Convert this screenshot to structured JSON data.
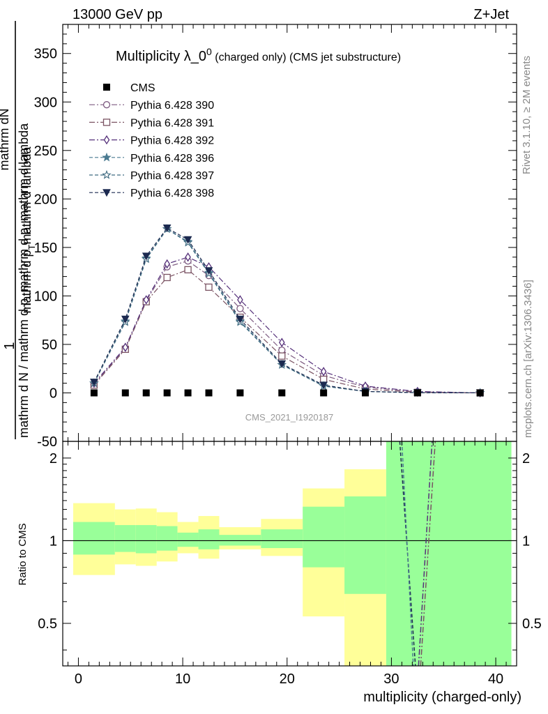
{
  "header": {
    "left": "13000 GeV pp",
    "right": "Z+Jet"
  },
  "side_labels": {
    "rivet": "Rivet 3.1.10, ≥ 2M events",
    "mcplots": "mcplots.cern.ch [arXiv:1306.3436]"
  },
  "watermark": "CMS_2021_I1920187",
  "title": {
    "main": "Multiplicity λ_0",
    "sup": "0",
    "rest": " (charged only) (CMS jet substructure)"
  },
  "ylabel": {
    "one": "1",
    "numerator": "mathrm dN",
    "denominator_a": "mathrm d p",
    "denominator_sub": "T",
    "denominator_b": "mathrm d lambda",
    "frac_main": "mathrm d N / mathrm d p_mathrm d p_mathrm d lambda"
  },
  "ratio_ylabel": "Ratio to CMS",
  "xlabel": "multiplicity (charged-only)",
  "chart_data": {
    "type": "line",
    "xlim": [
      -1.5,
      42
    ],
    "ylim": [
      -50,
      380
    ],
    "ratio_ylim": [
      0.35,
      2.3
    ],
    "x_ticks": [
      0,
      10,
      20,
      30,
      40
    ],
    "y_ticks": [
      -50,
      0,
      50,
      100,
      150,
      200,
      250,
      300,
      350
    ],
    "ratio_ticks": [
      0.5,
      1,
      2
    ],
    "x": [
      1.5,
      4.5,
      6.5,
      8.5,
      10.5,
      12.5,
      15.5,
      19.5,
      23.5,
      27.5,
      32.5,
      38.5
    ],
    "data": {
      "name": "CMS",
      "values": [
        0,
        0,
        0,
        0,
        0,
        0,
        0,
        0,
        0,
        0,
        0,
        0
      ]
    },
    "series": [
      {
        "name": "Pythia 6.428 390",
        "color": "#7d5a80",
        "marker": "circle-open",
        "dash": "8,3,2,3",
        "values": [
          9,
          46,
          95,
          130,
          136,
          121,
          87,
          44,
          18,
          6,
          1,
          0
        ]
      },
      {
        "name": "Pythia 6.428 391",
        "color": "#7a5262",
        "marker": "square-open",
        "dash": "8,3,2,3",
        "values": [
          8,
          45,
          94,
          119,
          127,
          109,
          78,
          38,
          14,
          4,
          0.5,
          0
        ]
      },
      {
        "name": "Pythia 6.428 392",
        "color": "#55307a",
        "marker": "diamond-open",
        "dash": "8,3,2,3",
        "values": [
          10,
          47,
          96,
          133,
          140,
          130,
          96,
          52,
          22,
          7,
          1.5,
          0
        ]
      },
      {
        "name": "Pythia 6.428 396",
        "color": "#4a7a90",
        "marker": "star-filled",
        "dash": "5,3",
        "values": [
          10,
          74,
          139,
          169,
          156,
          124,
          74,
          29,
          7,
          1.5,
          0.2,
          0
        ]
      },
      {
        "name": "Pythia 6.428 397",
        "color": "#3e6a80",
        "marker": "star-open",
        "dash": "5,3",
        "values": [
          10,
          73,
          138,
          169,
          155,
          123,
          73,
          29,
          7,
          1.5,
          0.2,
          0
        ]
      },
      {
        "name": "Pythia 6.428 398",
        "color": "#1c2a50",
        "marker": "triangle-down-filled",
        "dash": "5,3",
        "values": [
          11,
          76,
          141,
          170,
          158,
          126,
          76,
          30,
          8,
          1.5,
          0.2,
          0
        ]
      }
    ],
    "ratio_bands": [
      {
        "x0": -0.5,
        "x1": 3.5,
        "y_lo": 0.75,
        "y_hi": 1.37,
        "g_lo": 0.89,
        "g_hi": 1.17
      },
      {
        "x0": 3.5,
        "x1": 5.5,
        "y_lo": 0.82,
        "y_hi": 1.3,
        "g_lo": 0.91,
        "g_hi": 1.14
      },
      {
        "x0": 5.5,
        "x1": 7.5,
        "y_lo": 0.81,
        "y_hi": 1.31,
        "g_lo": 0.9,
        "g_hi": 1.14
      },
      {
        "x0": 7.5,
        "x1": 9.5,
        "y_lo": 0.84,
        "y_hi": 1.27,
        "g_lo": 0.92,
        "g_hi": 1.13
      },
      {
        "x0": 9.5,
        "x1": 11.5,
        "y_lo": 0.9,
        "y_hi": 1.17,
        "g_lo": 0.95,
        "g_hi": 1.07
      },
      {
        "x0": 11.5,
        "x1": 13.5,
        "y_lo": 0.86,
        "y_hi": 1.23,
        "g_lo": 0.93,
        "g_hi": 1.1
      },
      {
        "x0": 13.5,
        "x1": 17.5,
        "y_lo": 0.93,
        "y_hi": 1.12,
        "g_lo": 0.96,
        "g_hi": 1.05
      },
      {
        "x0": 17.5,
        "x1": 21.5,
        "y_lo": 0.88,
        "y_hi": 1.2,
        "g_lo": 0.94,
        "g_hi": 1.1
      },
      {
        "x0": 21.5,
        "x1": 25.5,
        "y_lo": 0.53,
        "y_hi": 1.55,
        "g_lo": 0.8,
        "g_hi": 1.33
      },
      {
        "x0": 25.5,
        "x1": 29.5,
        "y_lo": 0.35,
        "y_hi": 1.82,
        "g_lo": 0.64,
        "g_hi": 1.45
      },
      {
        "x0": 29.5,
        "x1": 41.5,
        "y_lo": 0.35,
        "y_hi": 2.3,
        "g_lo": 0.35,
        "g_hi": 2.3
      }
    ],
    "ratio_lines": [
      {
        "color": "#1c2a50",
        "dash": "5,3",
        "points": [
          [
            30.8,
            2.3
          ],
          [
            32.3,
            0.35
          ]
        ]
      },
      {
        "color": "#55307a",
        "dash": "8,3,2,3",
        "points": [
          [
            32.6,
            0.35
          ],
          [
            33.9,
            2.3
          ]
        ]
      },
      {
        "color": "#4a7a90",
        "dash": "5,3",
        "points": [
          [
            31.0,
            2.3
          ],
          [
            32.1,
            0.35
          ]
        ]
      },
      {
        "color": "#7a5262",
        "dash": "8,3,2,3",
        "points": [
          [
            32.8,
            0.35
          ],
          [
            34.2,
            2.3
          ]
        ]
      }
    ],
    "colors": {
      "yellow": "#ffff99",
      "green": "#99ff99"
    }
  }
}
